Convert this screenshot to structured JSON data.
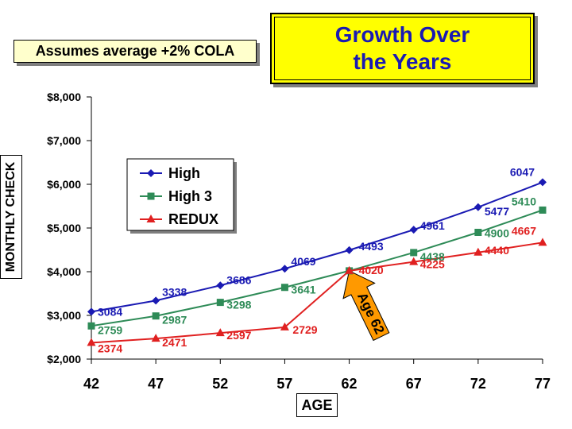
{
  "subtitle_box": "Assumes average +2% COLA",
  "title": "Growth Over\nthe Years",
  "chart_data": {
    "type": "line",
    "ylabel": "MONTHLY CHECK",
    "xlabel": "AGE",
    "x": [
      42,
      47,
      52,
      57,
      62,
      67,
      72,
      77
    ],
    "ylim": [
      2000,
      8000
    ],
    "yticks": [
      "$2,000",
      "$3,000",
      "$4,000",
      "$5,000",
      "$6,000",
      "$7,000",
      "$8,000"
    ],
    "ytick_values": [
      2000,
      3000,
      4000,
      5000,
      6000,
      7000,
      8000
    ],
    "legend_position": "top-left",
    "series": [
      {
        "name": "High",
        "color": "#1a1ab3",
        "marker": "diamond",
        "values": [
          3084,
          3338,
          3686,
          4069,
          4493,
          4961,
          5477,
          6047
        ]
      },
      {
        "name": "High 3",
        "color": "#2e8b57",
        "marker": "square",
        "values": [
          2759,
          2987,
          3298,
          3641,
          4020,
          4438,
          4900,
          5410
        ]
      },
      {
        "name": "REDUX",
        "color": "#e02020",
        "marker": "triangle",
        "values": [
          2374,
          2471,
          2597,
          2729,
          4020,
          4225,
          4440,
          4667
        ]
      }
    ],
    "data_labels": [
      [
        "3084",
        "3338",
        "3686",
        "4069",
        "4493",
        "4961",
        "5477",
        "6047"
      ],
      [
        "2759",
        "2987",
        "3298",
        "3641",
        "",
        "4438",
        "4900",
        "5410"
      ],
      [
        "2374",
        "2471",
        "2597",
        "2729",
        "4020",
        "4225",
        "4440",
        "4667"
      ]
    ],
    "annotation": {
      "text": "Age 62",
      "x": 62
    }
  }
}
